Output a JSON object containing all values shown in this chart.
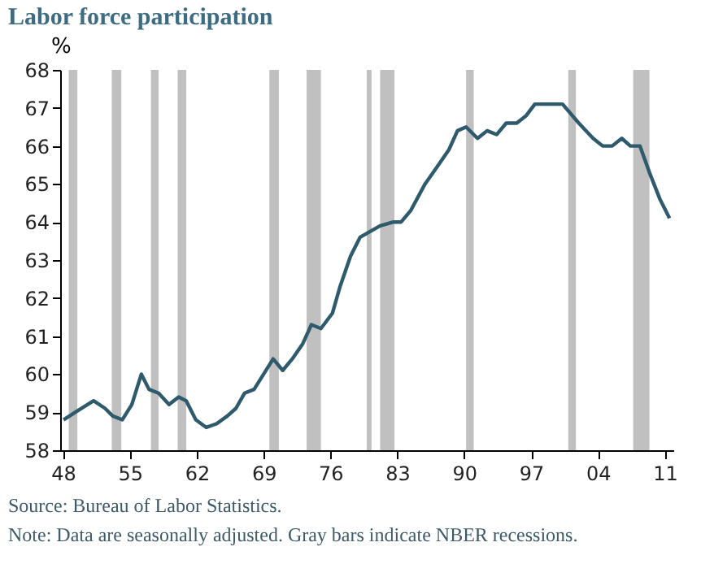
{
  "chart_data": {
    "type": "line",
    "title": "Labor force participation",
    "ylabel": "%",
    "xlim": [
      1947.7,
      2011.9
    ],
    "ylim": [
      58,
      68
    ],
    "xticks": [
      {
        "value": 1948,
        "label": "48"
      },
      {
        "value": 1955,
        "label": "55"
      },
      {
        "value": 1962,
        "label": "62"
      },
      {
        "value": 1969,
        "label": "69"
      },
      {
        "value": 1976,
        "label": "76"
      },
      {
        "value": 1983,
        "label": "83"
      },
      {
        "value": 1990,
        "label": "90"
      },
      {
        "value": 1997,
        "label": "97"
      },
      {
        "value": 2004,
        "label": "04"
      },
      {
        "value": 2011,
        "label": "11"
      }
    ],
    "yticks": [
      58,
      59,
      60,
      61,
      62,
      63,
      64,
      65,
      66,
      67,
      68
    ],
    "series": [
      {
        "color": "#2e5a6b",
        "x": [
          1948.05,
          1949.3,
          1951.2,
          1952.4,
          1953.2,
          1954.2,
          1955.2,
          1956.2,
          1957.0,
          1958.0,
          1959.1,
          1960.1,
          1960.9,
          1961.9,
          1963.0,
          1964.1,
          1965.2,
          1966.1,
          1967.0,
          1968.0,
          1969.0,
          1970.0,
          1971.0,
          1972.0,
          1973.1,
          1974.0,
          1975.0,
          1976.2,
          1977.0,
          1978.1,
          1979.1,
          1981.2,
          1982.6,
          1983.4,
          1984.4,
          1985.9,
          1987.3,
          1988.4,
          1989.3,
          1990.2,
          1991.4,
          1992.4,
          1993.4,
          1994.4,
          1995.5,
          1996.5,
          1997.4,
          2000.3,
          2002.0,
          2003.5,
          2004.5,
          2005.5,
          2006.5,
          2007.4,
          2008.4,
          2009.4,
          2010.5,
          2011.5
        ],
        "values": [
          58.8,
          59.0,
          59.3,
          59.1,
          58.9,
          58.8,
          59.2,
          60.0,
          59.6,
          59.5,
          59.2,
          59.4,
          59.3,
          58.8,
          58.6,
          58.7,
          58.9,
          59.1,
          59.5,
          59.6,
          60.0,
          60.4,
          60.1,
          60.4,
          60.8,
          61.3,
          61.2,
          61.6,
          62.3,
          63.1,
          63.6,
          63.9,
          64.0,
          64.0,
          64.3,
          65.0,
          65.5,
          65.9,
          66.4,
          66.5,
          66.2,
          66.4,
          66.3,
          66.6,
          66.6,
          66.8,
          67.1,
          67.1,
          66.6,
          66.2,
          66.0,
          66.0,
          66.2,
          66.0,
          66.0,
          65.3,
          64.6,
          64.1
        ]
      }
    ],
    "bands": [
      {
        "axis": "x",
        "from": 1948.6,
        "to": 1949.5,
        "color": "#c0c0c0"
      },
      {
        "axis": "x",
        "from": 1953.1,
        "to": 1954.1,
        "color": "#c0c0c0"
      },
      {
        "axis": "x",
        "from": 1957.2,
        "to": 1958.0,
        "color": "#c0c0c0"
      },
      {
        "axis": "x",
        "from": 1960.0,
        "to": 1960.9,
        "color": "#c0c0c0"
      },
      {
        "axis": "x",
        "from": 1969.6,
        "to": 1970.6,
        "color": "#c0c0c0"
      },
      {
        "axis": "x",
        "from": 1973.5,
        "to": 1975.0,
        "color": "#c0c0c0"
      },
      {
        "axis": "x",
        "from": 1979.8,
        "to": 1980.3,
        "color": "#c0c0c0"
      },
      {
        "axis": "x",
        "from": 1981.2,
        "to": 1982.7,
        "color": "#c0c0c0"
      },
      {
        "axis": "x",
        "from": 1990.2,
        "to": 1991.0,
        "color": "#c0c0c0"
      },
      {
        "axis": "x",
        "from": 2000.9,
        "to": 2001.7,
        "color": "#c0c0c0"
      },
      {
        "axis": "x",
        "from": 2007.7,
        "to": 2009.4,
        "color": "#c0c0c0"
      }
    ],
    "annotations": [
      "Source: Bureau of Labor Statistics.",
      "Note: Data are seasonally adjusted. Gray bars indicate NBER recessions."
    ]
  }
}
